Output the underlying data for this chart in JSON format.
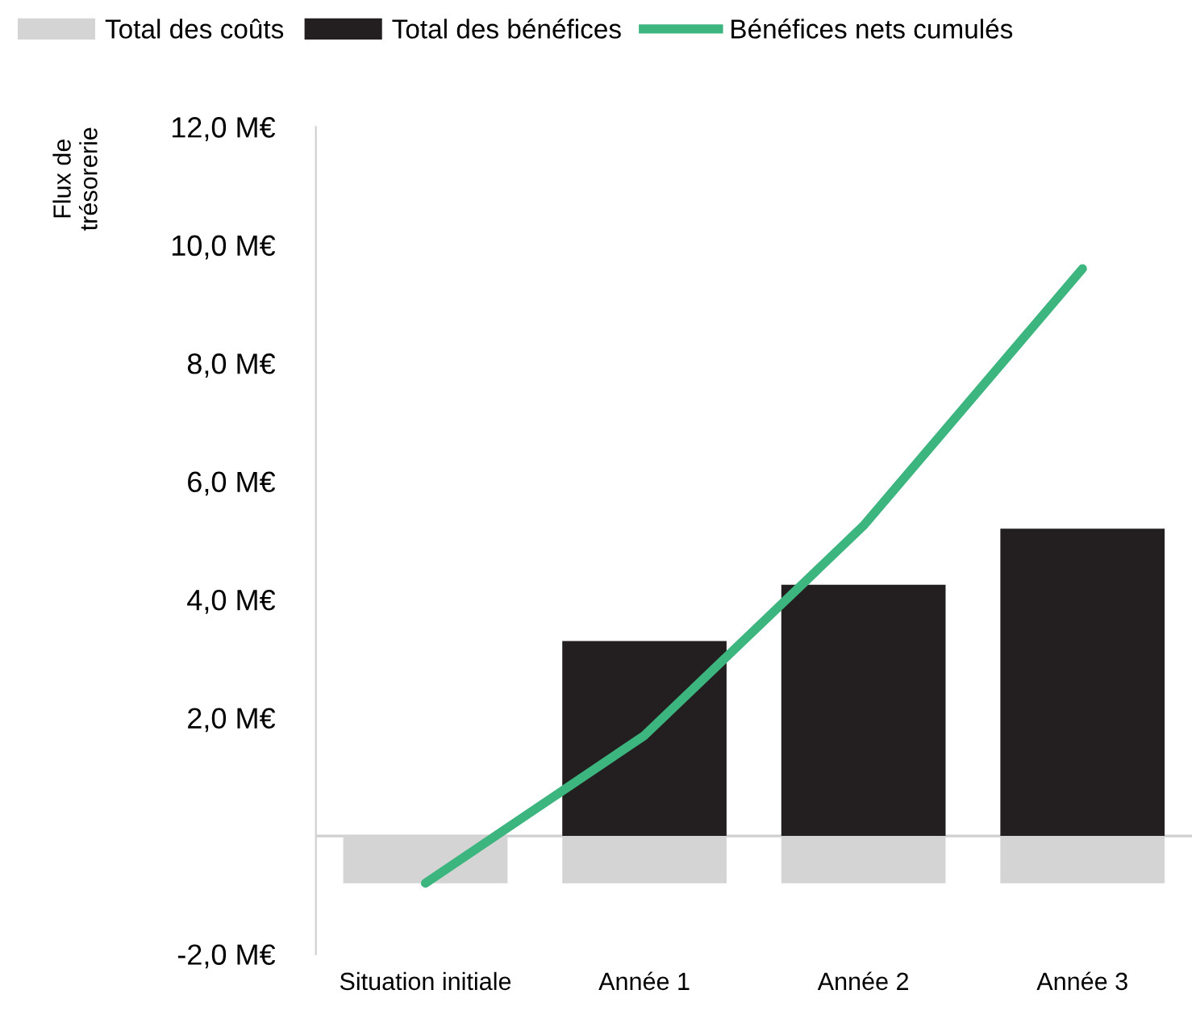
{
  "chart_data": {
    "type": "bar",
    "ylabel": "Flux de\ntrésorerie",
    "categories": [
      "Situation initiale",
      "Année 1",
      "Année 2",
      "Année 3"
    ],
    "stacked": true,
    "series": [
      {
        "name": "Total des coûts",
        "color": "#d4d4d4",
        "values": [
          -0.8,
          -0.8,
          -0.8,
          -0.8
        ]
      },
      {
        "name": "Total des bénéfices",
        "color": "#231f20",
        "values": [
          null,
          3.3,
          4.25,
          5.2
        ]
      },
      {
        "name": "Bénéfices nets cumulés",
        "type": "line",
        "color": "#3cb57f",
        "values": [
          -0.8,
          1.7,
          5.25,
          9.6
        ]
      }
    ],
    "ylim": [
      -2,
      12
    ],
    "yticks": [
      {
        "value": -2,
        "label": "-2,0 M€"
      },
      {
        "value": 0,
        "label": null
      },
      {
        "value": 2,
        "label": "2,0 M€"
      },
      {
        "value": 4,
        "label": "4,0 M€"
      },
      {
        "value": 6,
        "label": "6,0 M€"
      },
      {
        "value": 8,
        "label": "8,0 M€"
      },
      {
        "value": 10,
        "label": "10,0 M€"
      },
      {
        "value": 12,
        "label": "12,0 M€"
      }
    ],
    "legend": "top"
  }
}
